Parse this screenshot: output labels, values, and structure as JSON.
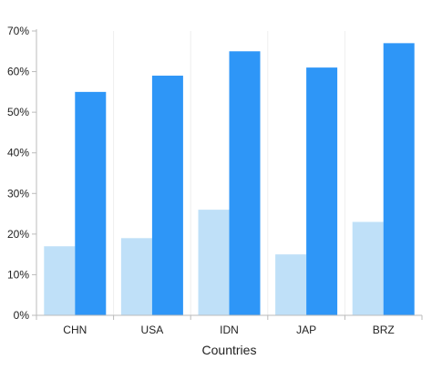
{
  "chart_data": {
    "type": "bar",
    "xlabel": "Countries",
    "ylabel": "",
    "categories": [
      "CHN",
      "USA",
      "IDN",
      "JAP",
      "BRZ"
    ],
    "series": [
      {
        "color": "#BFE0F8",
        "values": [
          17,
          19,
          26,
          15,
          23
        ]
      },
      {
        "color": "#2E96F7",
        "values": [
          55,
          59,
          65,
          61,
          67
        ]
      }
    ],
    "ylim": [
      0,
      70
    ],
    "yticks": [
      0,
      10,
      20,
      30,
      40,
      50,
      60,
      70
    ],
    "ytick_labels": [
      "0%",
      "10%",
      "20%",
      "30%",
      "40%",
      "50%",
      "60%",
      "70%"
    ],
    "grid": {
      "vertical": true,
      "horizontal": false
    }
  }
}
